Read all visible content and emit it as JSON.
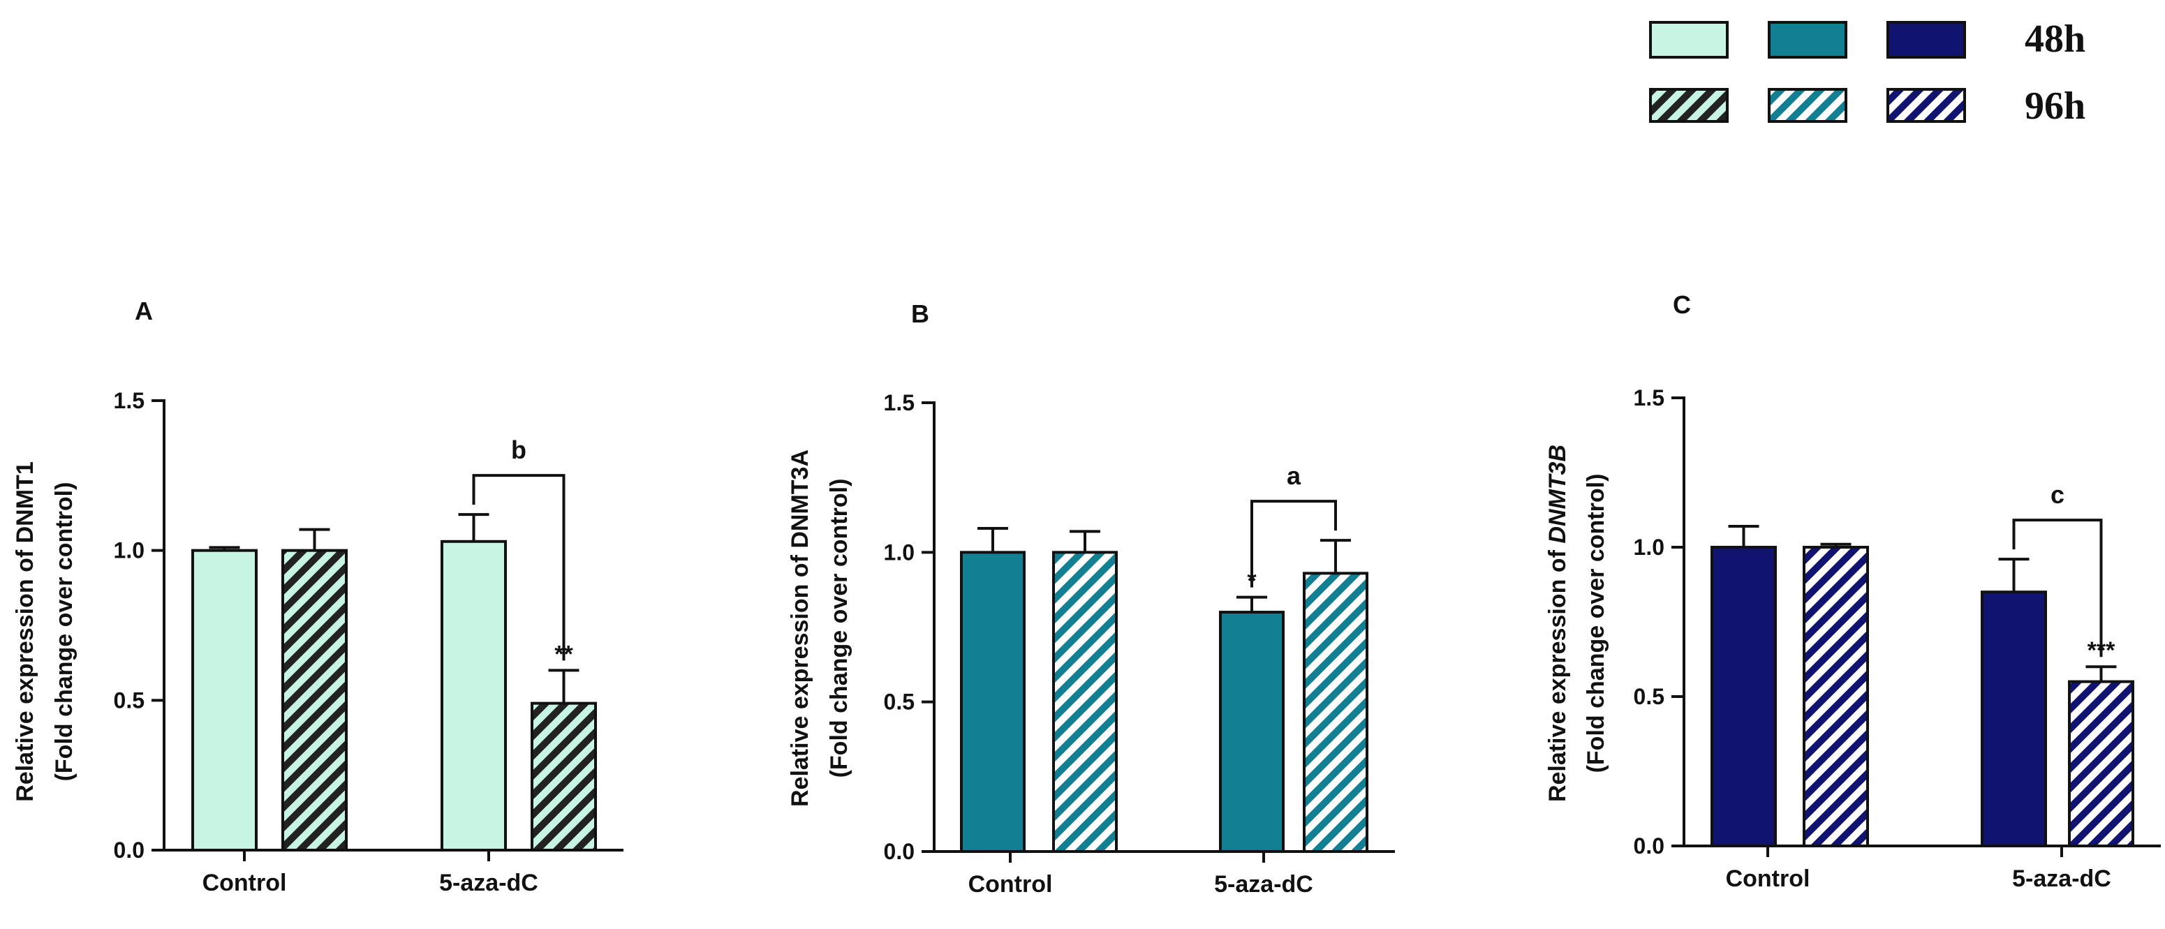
{
  "legend": {
    "rows": [
      {
        "label": "48h",
        "pattern": "solid"
      },
      {
        "label": "96h",
        "pattern": "hatched"
      }
    ],
    "colors": [
      "#c8f4e4",
      "#127f92",
      "#101470"
    ]
  },
  "chart_data": [
    {
      "type": "bar",
      "panel": "A",
      "ylabel_lines": [
        "Relative expression of DNMT1",
        "(Fold change over control)"
      ],
      "ylabel_italic": false,
      "categories": [
        "Control",
        "5-aza-dC"
      ],
      "ylim": [
        0,
        1.5
      ],
      "yticks": [
        "0.0",
        "0.5",
        "1.0",
        "1.5"
      ],
      "color": "#c8f4e4",
      "hatch_color": "#222222",
      "series": [
        {
          "name": "48h",
          "values": [
            1.0,
            1.03
          ],
          "errors": [
            0.01,
            0.09
          ],
          "stars": [
            "",
            ""
          ]
        },
        {
          "name": "96h",
          "values": [
            1.0,
            0.49
          ],
          "errors": [
            0.07,
            0.11
          ],
          "stars": [
            "",
            "**"
          ]
        }
      ],
      "bracket": {
        "label": "b",
        "category": 1
      }
    },
    {
      "type": "bar",
      "panel": "B",
      "ylabel_lines": [
        "Relative expression of DNMT3A",
        "(Fold change over control)"
      ],
      "ylabel_italic": false,
      "categories": [
        "Control",
        "5-aza-dC"
      ],
      "ylim": [
        0,
        1.5
      ],
      "yticks": [
        "0.0",
        "0.5",
        "1.0",
        "1.5"
      ],
      "color": "#127f92",
      "hatch_color": "#ffffff",
      "series": [
        {
          "name": "48h",
          "values": [
            1.0,
            0.8
          ],
          "errors": [
            0.08,
            0.05
          ],
          "stars": [
            "",
            "*"
          ]
        },
        {
          "name": "96h",
          "values": [
            1.0,
            0.93
          ],
          "errors": [
            0.07,
            0.11
          ],
          "stars": [
            "",
            ""
          ]
        }
      ],
      "bracket": {
        "label": "a",
        "category": 1
      }
    },
    {
      "type": "bar",
      "panel": "C",
      "ylabel_lines": [
        "Relative expression of DNMT3B",
        "(Fold change over control)"
      ],
      "ylabel_italic": true,
      "categories": [
        "Control",
        "5-aza-dC"
      ],
      "ylim": [
        0,
        1.5
      ],
      "yticks": [
        "0.0",
        "0.5",
        "1.0",
        "1.5"
      ],
      "color": "#101470",
      "hatch_color": "#ffffff",
      "series": [
        {
          "name": "48h",
          "values": [
            1.0,
            0.85
          ],
          "errors": [
            0.07,
            0.11
          ],
          "stars": [
            "",
            ""
          ]
        },
        {
          "name": "96h",
          "values": [
            1.0,
            0.55
          ],
          "errors": [
            0.01,
            0.05
          ],
          "stars": [
            "",
            "***"
          ]
        }
      ],
      "bracket": {
        "label": "c",
        "category": 1
      }
    }
  ]
}
